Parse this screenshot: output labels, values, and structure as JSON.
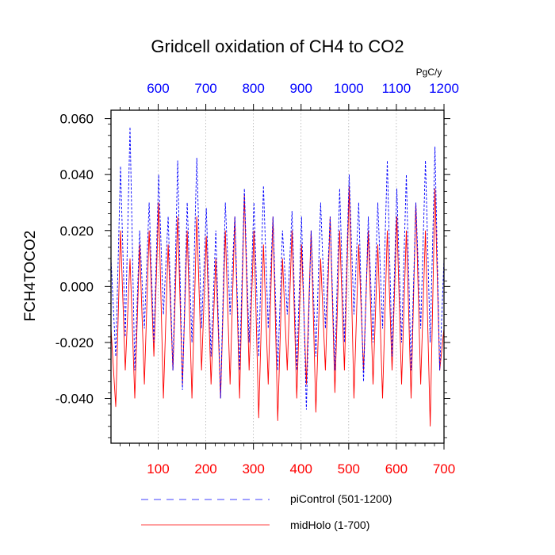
{
  "colors": {
    "top_axis": "#0000ff",
    "bottom_axis": "#ff0000",
    "picontrol_line": "#0000ff",
    "midholo_line": "#ff0000",
    "grid": "#999999",
    "axis": "#000000"
  },
  "chart_data": {
    "type": "line",
    "title": "Gridcell oxidation of CH4 to CO2",
    "units": "PgC/y",
    "ylabel": "FCH4TOCO2",
    "ylim": [
      -0.056,
      0.063
    ],
    "yticks": [
      "0.060",
      "0.040",
      "0.020",
      "0.000",
      "-0.020",
      "-0.040"
    ],
    "ytick_values": [
      0.06,
      0.04,
      0.02,
      0.0,
      -0.02,
      -0.04
    ],
    "x_bottom": {
      "range": [
        1,
        700
      ],
      "ticks": [
        "100",
        "200",
        "300",
        "400",
        "500",
        "600",
        "700"
      ],
      "tick_values": [
        100,
        200,
        300,
        400,
        500,
        600,
        700
      ]
    },
    "x_top": {
      "range": [
        501,
        1200
      ],
      "ticks": [
        "600",
        "700",
        "800",
        "900",
        "1000",
        "1100",
        "1200"
      ],
      "tick_values": [
        600,
        700,
        800,
        900,
        1000,
        1100,
        1200
      ]
    },
    "grid": "vertical dotted",
    "legend_position": "bottom",
    "series": [
      {
        "name": "piControl (501-1200)",
        "style": "dashed",
        "x": [
          1,
          11,
          21,
          31,
          41,
          51,
          61,
          71,
          81,
          91,
          101,
          111,
          121,
          131,
          141,
          151,
          161,
          171,
          181,
          191,
          201,
          211,
          221,
          231,
          241,
          251,
          261,
          271,
          281,
          291,
          301,
          311,
          321,
          331,
          341,
          351,
          361,
          371,
          381,
          391,
          401,
          411,
          421,
          431,
          441,
          451,
          461,
          471,
          481,
          491,
          501,
          511,
          521,
          531,
          541,
          551,
          561,
          571,
          581,
          591,
          601,
          611,
          621,
          631,
          641,
          651,
          661,
          671,
          681,
          691,
          700
        ],
        "values": [
          0.01,
          -0.025,
          0.043,
          -0.018,
          0.057,
          -0.03,
          0.02,
          -0.015,
          0.03,
          -0.02,
          0.04,
          -0.01,
          0.025,
          -0.03,
          0.045,
          -0.037,
          0.03,
          -0.02,
          0.046,
          -0.015,
          0.028,
          -0.025,
          0.02,
          -0.04,
          0.03,
          -0.01,
          0.025,
          -0.03,
          0.035,
          -0.02,
          0.03,
          -0.025,
          0.036,
          -0.015,
          0.025,
          -0.03,
          0.02,
          -0.01,
          0.027,
          -0.03,
          0.025,
          -0.044,
          0.02,
          -0.025,
          0.03,
          -0.015,
          0.025,
          -0.03,
          0.035,
          -0.02,
          0.04,
          -0.01,
          0.03,
          -0.034,
          0.025,
          -0.02,
          0.03,
          -0.015,
          0.045,
          -0.025,
          0.035,
          -0.02,
          0.04,
          -0.03,
          0.03,
          -0.015,
          0.045,
          -0.02,
          0.05,
          -0.03,
          0.01
        ]
      },
      {
        "name": "midHolo (1-700)",
        "style": "solid",
        "x": [
          1,
          11,
          21,
          31,
          41,
          51,
          61,
          71,
          81,
          91,
          101,
          111,
          121,
          131,
          141,
          151,
          161,
          171,
          181,
          191,
          201,
          211,
          221,
          231,
          241,
          251,
          261,
          271,
          281,
          291,
          301,
          311,
          321,
          331,
          341,
          351,
          361,
          371,
          381,
          391,
          401,
          411,
          421,
          431,
          441,
          451,
          461,
          471,
          481,
          491,
          501,
          511,
          521,
          531,
          541,
          551,
          561,
          571,
          581,
          591,
          601,
          611,
          621,
          631,
          641,
          651,
          661,
          671,
          681,
          691,
          700
        ],
        "values": [
          -0.015,
          -0.043,
          0.02,
          -0.03,
          0.01,
          -0.04,
          0.015,
          -0.035,
          0.02,
          -0.025,
          0.03,
          -0.04,
          0.015,
          -0.03,
          0.025,
          -0.035,
          0.02,
          -0.04,
          0.025,
          -0.03,
          0.018,
          -0.035,
          0.01,
          -0.04,
          0.02,
          -0.035,
          0.025,
          -0.04,
          0.033,
          -0.03,
          0.02,
          -0.047,
          0.015,
          -0.035,
          0.025,
          -0.048,
          0.01,
          -0.03,
          0.02,
          -0.04,
          0.015,
          -0.035,
          0.02,
          -0.045,
          0.01,
          -0.03,
          0.025,
          -0.038,
          0.02,
          -0.03,
          0.036,
          -0.04,
          0.015,
          -0.03,
          0.02,
          -0.035,
          0.015,
          -0.04,
          0.02,
          -0.03,
          0.025,
          -0.035,
          0.02,
          -0.04,
          0.03,
          -0.035,
          0.02,
          -0.05,
          0.035,
          -0.03,
          -0.015
        ]
      }
    ]
  }
}
